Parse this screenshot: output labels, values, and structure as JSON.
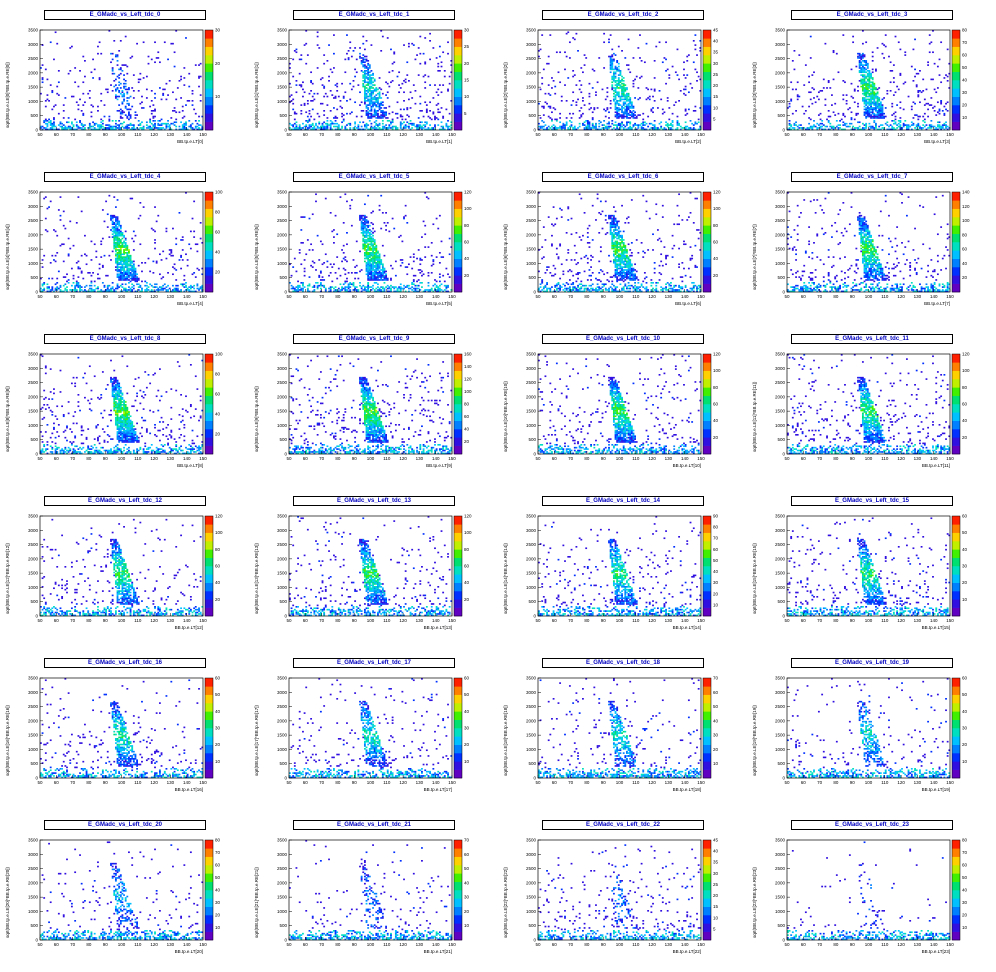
{
  "chart_data": [
    {
      "type": "heatmap",
      "title": "E_GMadc_vs_Left_tdc_0",
      "xlabel": "BB.tp.e.LT[0]",
      "ylabel": "sqrt(BB.tp.e.LE[0]*BB.tp.e.RE[0])",
      "xlim": [
        50,
        150
      ],
      "ylim": [
        0,
        3500
      ],
      "xticks": [
        50,
        60,
        70,
        80,
        90,
        100,
        110,
        120,
        130,
        140,
        150
      ],
      "yticks": [
        0,
        500,
        1000,
        1500,
        2000,
        2500,
        3000,
        3500
      ],
      "zmax": 30,
      "zticks": [
        0,
        10,
        20,
        30
      ]
    },
    {
      "type": "heatmap",
      "title": "E_GMadc_vs_Left_tdc_1",
      "xlabel": "BB.tp.e.LT[1]",
      "ylabel": "sqrt(BB.tp.e.LE[1]*BB.tp.e.RE[1])",
      "xlim": [
        50,
        150
      ],
      "ylim": [
        0,
        3500
      ],
      "xticks": [
        50,
        60,
        70,
        80,
        90,
        100,
        110,
        120,
        130,
        140,
        150
      ],
      "yticks": [
        0,
        500,
        1000,
        1500,
        2000,
        2500,
        3000,
        3500
      ],
      "zmax": 30,
      "zticks": [
        0,
        5,
        10,
        15,
        20,
        25,
        30
      ]
    },
    {
      "type": "heatmap",
      "title": "E_GMadc_vs_Left_tdc_2",
      "xlabel": "BB.tp.e.LT[2]",
      "ylabel": "sqrt(BB.tp.e.LE[2]*BB.tp.e.RE[2])",
      "xlim": [
        50,
        150
      ],
      "ylim": [
        0,
        3500
      ],
      "xticks": [
        50,
        60,
        70,
        80,
        90,
        100,
        110,
        120,
        130,
        140,
        150
      ],
      "yticks": [
        0,
        500,
        1000,
        1500,
        2000,
        2500,
        3000,
        3500
      ],
      "zmax": 45,
      "zticks": [
        0,
        5,
        10,
        15,
        20,
        25,
        30,
        35,
        40,
        45
      ]
    },
    {
      "type": "heatmap",
      "title": "E_GMadc_vs_Left_tdc_3",
      "xlabel": "BB.tp.e.LT[3]",
      "ylabel": "sqrt(BB.tp.e.LE[3]*BB.tp.e.RE[3])",
      "xlim": [
        50,
        150
      ],
      "ylim": [
        0,
        3500
      ],
      "xticks": [
        50,
        60,
        70,
        80,
        90,
        100,
        110,
        120,
        130,
        140,
        150
      ],
      "yticks": [
        0,
        500,
        1000,
        1500,
        2000,
        2500,
        3000,
        3500
      ],
      "zmax": 80,
      "zticks": [
        0,
        10,
        20,
        30,
        40,
        50,
        60,
        70,
        80
      ]
    },
    {
      "type": "heatmap",
      "title": "E_GMadc_vs_Left_tdc_4",
      "xlabel": "BB.tp.e.LT[4]",
      "ylabel": "sqrt(BB.tp.e.LE[4]*BB.tp.e.RE[4])",
      "xlim": [
        50,
        150
      ],
      "ylim": [
        0,
        3500
      ],
      "xticks": [
        50,
        60,
        70,
        80,
        90,
        100,
        110,
        120,
        130,
        140,
        150
      ],
      "yticks": [
        0,
        500,
        1000,
        1500,
        2000,
        2500,
        3000,
        3500
      ],
      "zmax": 100,
      "zticks": [
        0,
        20,
        40,
        60,
        80,
        100
      ]
    },
    {
      "type": "heatmap",
      "title": "E_GMadc_vs_Left_tdc_5",
      "xlabel": "BB.tp.e.LT[5]",
      "ylabel": "sqrt(BB.tp.e.LE[5]*BB.tp.e.RE[5])",
      "xlim": [
        50,
        150
      ],
      "ylim": [
        0,
        3500
      ],
      "xticks": [
        50,
        60,
        70,
        80,
        90,
        100,
        110,
        120,
        130,
        140,
        150
      ],
      "yticks": [
        0,
        500,
        1000,
        1500,
        2000,
        2500,
        3000,
        3500
      ],
      "zmax": 120,
      "zticks": [
        0,
        20,
        40,
        60,
        80,
        100,
        120
      ]
    },
    {
      "type": "heatmap",
      "title": "E_GMadc_vs_Left_tdc_6",
      "xlabel": "BB.tp.e.LT[6]",
      "ylabel": "sqrt(BB.tp.e.LE[6]*BB.tp.e.RE[6])",
      "xlim": [
        50,
        150
      ],
      "ylim": [
        0,
        3500
      ],
      "xticks": [
        50,
        60,
        70,
        80,
        90,
        100,
        110,
        120,
        130,
        140,
        150
      ],
      "yticks": [
        0,
        500,
        1000,
        1500,
        2000,
        2500,
        3000,
        3500
      ],
      "zmax": 120,
      "zticks": [
        0,
        20,
        40,
        60,
        80,
        100,
        120
      ]
    },
    {
      "type": "heatmap",
      "title": "E_GMadc_vs_Left_tdc_7",
      "xlabel": "BB.tp.e.LT[7]",
      "ylabel": "sqrt(BB.tp.e.LE[7]*BB.tp.e.RE[7])",
      "xlim": [
        50,
        150
      ],
      "ylim": [
        0,
        3500
      ],
      "xticks": [
        50,
        60,
        70,
        80,
        90,
        100,
        110,
        120,
        130,
        140,
        150
      ],
      "yticks": [
        0,
        500,
        1000,
        1500,
        2000,
        2500,
        3000,
        3500
      ],
      "zmax": 140,
      "zticks": [
        0,
        20,
        40,
        60,
        80,
        100,
        120,
        140
      ]
    },
    {
      "type": "heatmap",
      "title": "E_GMadc_vs_Left_tdc_8",
      "xlabel": "BB.tp.e.LT[8]",
      "ylabel": "sqrt(BB.tp.e.LE[8]*BB.tp.e.RE[8])",
      "xlim": [
        50,
        150
      ],
      "ylim": [
        0,
        3500
      ],
      "xticks": [
        50,
        60,
        70,
        80,
        90,
        100,
        110,
        120,
        130,
        140,
        150
      ],
      "yticks": [
        0,
        500,
        1000,
        1500,
        2000,
        2500,
        3000,
        3500
      ],
      "zmax": 100,
      "zticks": [
        0,
        20,
        40,
        60,
        80,
        100
      ]
    },
    {
      "type": "heatmap",
      "title": "E_GMadc_vs_Left_tdc_9",
      "xlabel": "BB.tp.e.LT[9]",
      "ylabel": "sqrt(BB.tp.e.LE[9]*BB.tp.e.RE[9])",
      "xlim": [
        50,
        150
      ],
      "ylim": [
        0,
        3500
      ],
      "xticks": [
        50,
        60,
        70,
        80,
        90,
        100,
        110,
        120,
        130,
        140,
        150
      ],
      "yticks": [
        0,
        500,
        1000,
        1500,
        2000,
        2500,
        3000,
        3500
      ],
      "zmax": 160,
      "zticks": [
        0,
        20,
        40,
        60,
        80,
        100,
        120,
        140,
        160
      ]
    },
    {
      "type": "heatmap",
      "title": "E_GMadc_vs_Left_tdc_10",
      "xlabel": "BB.tp.e.LT[10]",
      "ylabel": "sqrt(BB.tp.e.LE[10]*BB.tp.e.RE[10])",
      "xlim": [
        50,
        150
      ],
      "ylim": [
        0,
        3500
      ],
      "xticks": [
        50,
        60,
        70,
        80,
        90,
        100,
        110,
        120,
        130,
        140,
        150
      ],
      "yticks": [
        0,
        500,
        1000,
        1500,
        2000,
        2500,
        3000,
        3500
      ],
      "zmax": 120,
      "zticks": [
        0,
        20,
        40,
        60,
        80,
        100,
        120
      ]
    },
    {
      "type": "heatmap",
      "title": "E_GMadc_vs_Left_tdc_11",
      "xlabel": "BB.tp.e.LT[11]",
      "ylabel": "sqrt(BB.tp.e.LE[11]*BB.tp.e.RE[11])",
      "xlim": [
        50,
        150
      ],
      "ylim": [
        0,
        3500
      ],
      "xticks": [
        50,
        60,
        70,
        80,
        90,
        100,
        110,
        120,
        130,
        140,
        150
      ],
      "yticks": [
        0,
        500,
        1000,
        1500,
        2000,
        2500,
        3000,
        3500
      ],
      "zmax": 120,
      "zticks": [
        0,
        20,
        40,
        60,
        80,
        100,
        120
      ]
    },
    {
      "type": "heatmap",
      "title": "E_GMadc_vs_Left_tdc_12",
      "xlabel": "BB.tp.e.LT[12]",
      "ylabel": "sqrt(BB.tp.e.LE[12]*BB.tp.e.RE[12])",
      "xlim": [
        50,
        150
      ],
      "ylim": [
        0,
        3500
      ],
      "xticks": [
        50,
        60,
        70,
        80,
        90,
        100,
        110,
        120,
        130,
        140,
        150
      ],
      "yticks": [
        0,
        500,
        1000,
        1500,
        2000,
        2500,
        3000,
        3500
      ],
      "zmax": 120,
      "zticks": [
        0,
        20,
        40,
        60,
        80,
        100,
        120
      ]
    },
    {
      "type": "heatmap",
      "title": "E_GMadc_vs_Left_tdc_13",
      "xlabel": "BB.tp.e.LT[13]",
      "ylabel": "sqrt(BB.tp.e.LE[13]*BB.tp.e.RE[13])",
      "xlim": [
        50,
        150
      ],
      "ylim": [
        0,
        3500
      ],
      "xticks": [
        50,
        60,
        70,
        80,
        90,
        100,
        110,
        120,
        130,
        140,
        150
      ],
      "yticks": [
        0,
        500,
        1000,
        1500,
        2000,
        2500,
        3000,
        3500
      ],
      "zmax": 120,
      "zticks": [
        0,
        20,
        40,
        60,
        80,
        100,
        120
      ]
    },
    {
      "type": "heatmap",
      "title": "E_GMadc_vs_Left_tdc_14",
      "xlabel": "BB.tp.e.LT[14]",
      "ylabel": "sqrt(BB.tp.e.LE[14]*BB.tp.e.RE[14])",
      "xlim": [
        50,
        150
      ],
      "ylim": [
        0,
        3500
      ],
      "xticks": [
        50,
        60,
        70,
        80,
        90,
        100,
        110,
        120,
        130,
        140,
        150
      ],
      "yticks": [
        0,
        500,
        1000,
        1500,
        2000,
        2500,
        3000,
        3500
      ],
      "zmax": 90,
      "zticks": [
        0,
        10,
        20,
        30,
        40,
        50,
        60,
        70,
        80,
        90
      ]
    },
    {
      "type": "heatmap",
      "title": "E_GMadc_vs_Left_tdc_15",
      "xlabel": "BB.tp.e.LT[15]",
      "ylabel": "sqrt(BB.tp.e.LE[15]*BB.tp.e.RE[15])",
      "xlim": [
        50,
        150
      ],
      "ylim": [
        0,
        3500
      ],
      "xticks": [
        50,
        60,
        70,
        80,
        90,
        100,
        110,
        120,
        130,
        140,
        150
      ],
      "yticks": [
        0,
        500,
        1000,
        1500,
        2000,
        2500,
        3000,
        3500
      ],
      "zmax": 60,
      "zticks": [
        0,
        10,
        20,
        30,
        40,
        50,
        60
      ]
    },
    {
      "type": "heatmap",
      "title": "E_GMadc_vs_Left_tdc_16",
      "xlabel": "BB.tp.e.LT[16]",
      "ylabel": "sqrt(BB.tp.e.LE[16]*BB.tp.e.RE[16])",
      "xlim": [
        50,
        150
      ],
      "ylim": [
        0,
        3500
      ],
      "xticks": [
        50,
        60,
        70,
        80,
        90,
        100,
        110,
        120,
        130,
        140,
        150
      ],
      "yticks": [
        0,
        500,
        1000,
        1500,
        2000,
        2500,
        3000,
        3500
      ],
      "zmax": 60,
      "zticks": [
        0,
        10,
        20,
        30,
        40,
        50,
        60
      ]
    },
    {
      "type": "heatmap",
      "title": "E_GMadc_vs_Left_tdc_17",
      "xlabel": "BB.tp.e.LT[17]",
      "ylabel": "sqrt(BB.tp.e.LE[17]*BB.tp.e.RE[17])",
      "xlim": [
        50,
        150
      ],
      "ylim": [
        0,
        3500
      ],
      "xticks": [
        50,
        60,
        70,
        80,
        90,
        100,
        110,
        120,
        130,
        140,
        150
      ],
      "yticks": [
        0,
        500,
        1000,
        1500,
        2000,
        2500,
        3000,
        3500
      ],
      "zmax": 60,
      "zticks": [
        0,
        10,
        20,
        30,
        40,
        50,
        60
      ]
    },
    {
      "type": "heatmap",
      "title": "E_GMadc_vs_Left_tdc_18",
      "xlabel": "BB.tp.e.LT[18]",
      "ylabel": "sqrt(BB.tp.e.LE[18]*BB.tp.e.RE[18])",
      "xlim": [
        50,
        150
      ],
      "ylim": [
        0,
        3500
      ],
      "xticks": [
        50,
        60,
        70,
        80,
        90,
        100,
        110,
        120,
        130,
        140,
        150
      ],
      "yticks": [
        0,
        500,
        1000,
        1500,
        2000,
        2500,
        3000,
        3500
      ],
      "zmax": 70,
      "zticks": [
        0,
        10,
        20,
        30,
        40,
        50,
        60,
        70
      ]
    },
    {
      "type": "heatmap",
      "title": "E_GMadc_vs_Left_tdc_19",
      "xlabel": "BB.tp.e.LT[19]",
      "ylabel": "sqrt(BB.tp.e.LE[19]*BB.tp.e.RE[19])",
      "xlim": [
        50,
        150
      ],
      "ylim": [
        0,
        3500
      ],
      "xticks": [
        50,
        60,
        70,
        80,
        90,
        100,
        110,
        120,
        130,
        140,
        150
      ],
      "yticks": [
        0,
        500,
        1000,
        1500,
        2000,
        2500,
        3000,
        3500
      ],
      "zmax": 60,
      "zticks": [
        0,
        10,
        20,
        30,
        40,
        50,
        60
      ]
    },
    {
      "type": "heatmap",
      "title": "E_GMadc_vs_Left_tdc_20",
      "xlabel": "BB.tp.e.LT[20]",
      "ylabel": "sqrt(BB.tp.e.LE[20]*BB.tp.e.RE[20])",
      "xlim": [
        50,
        150
      ],
      "ylim": [
        0,
        3500
      ],
      "xticks": [
        50,
        60,
        70,
        80,
        90,
        100,
        110,
        120,
        130,
        140,
        150
      ],
      "yticks": [
        0,
        500,
        1000,
        1500,
        2000,
        2500,
        3000,
        3500
      ],
      "zmax": 80,
      "zticks": [
        0,
        10,
        20,
        30,
        40,
        50,
        60,
        70,
        80
      ]
    },
    {
      "type": "heatmap",
      "title": "E_GMadc_vs_Left_tdc_21",
      "xlabel": "BB.tp.e.LT[21]",
      "ylabel": "sqrt(BB.tp.e.LE[21]*BB.tp.e.RE[21])",
      "xlim": [
        50,
        150
      ],
      "ylim": [
        0,
        3500
      ],
      "xticks": [
        50,
        60,
        70,
        80,
        90,
        100,
        110,
        120,
        130,
        140,
        150
      ],
      "yticks": [
        0,
        500,
        1000,
        1500,
        2000,
        2500,
        3000,
        3500
      ],
      "zmax": 70,
      "zticks": [
        0,
        10,
        20,
        30,
        40,
        50,
        60,
        70
      ]
    },
    {
      "type": "heatmap",
      "title": "E_GMadc_vs_Left_tdc_22",
      "xlabel": "BB.tp.e.LT[22]",
      "ylabel": "sqrt(BB.tp.e.LE[22]*BB.tp.e.RE[22])",
      "xlim": [
        50,
        150
      ],
      "ylim": [
        0,
        3500
      ],
      "xticks": [
        50,
        60,
        70,
        80,
        90,
        100,
        110,
        120,
        130,
        140,
        150
      ],
      "yticks": [
        0,
        500,
        1000,
        1500,
        2000,
        2500,
        3000,
        3500
      ],
      "zmax": 45,
      "zticks": [
        0,
        5,
        10,
        15,
        20,
        25,
        30,
        35,
        40,
        45
      ]
    },
    {
      "type": "heatmap",
      "title": "E_GMadc_vs_Left_tdc_23",
      "xlabel": "BB.tp.e.LT[23]",
      "ylabel": "sqrt(BB.tp.e.LE[23]*BB.tp.e.RE[23])",
      "xlim": [
        50,
        150
      ],
      "ylim": [
        0,
        3500
      ],
      "xticks": [
        50,
        60,
        70,
        80,
        90,
        100,
        110,
        120,
        130,
        140,
        150
      ],
      "yticks": [
        0,
        500,
        1000,
        1500,
        2000,
        2500,
        3000,
        3500
      ],
      "zmax": 80,
      "zticks": [
        0,
        10,
        20,
        30,
        40,
        50,
        60,
        70,
        80
      ]
    }
  ],
  "palette": [
    "#6000c0",
    "#3010e0",
    "#0030ff",
    "#0080ff",
    "#00c0ff",
    "#00e0c0",
    "#00e070",
    "#40f000",
    "#c0f000",
    "#ffd000",
    "#ff8000",
    "#ff2000"
  ]
}
